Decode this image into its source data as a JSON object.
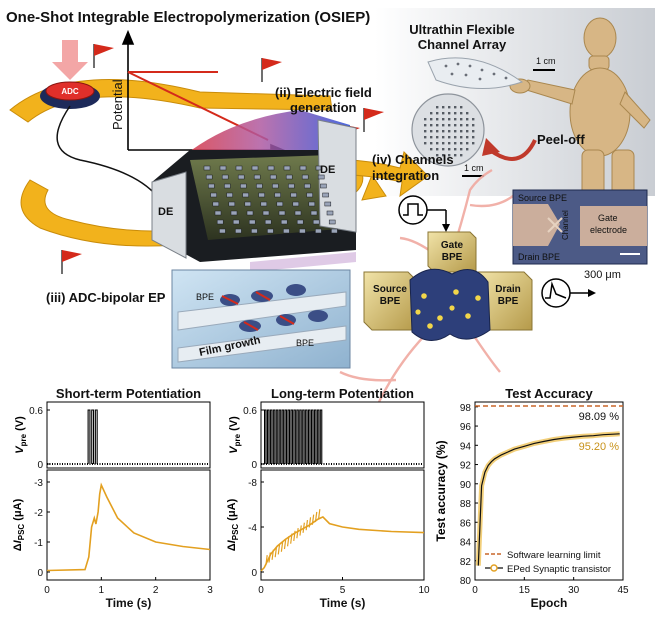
{
  "title": "One-Shot Integrable Electropolymerization (OSIEP)",
  "top_left": {
    "button": "ADC",
    "axis_label": "Potential",
    "step_ii": "(ii) Electric field",
    "step_ii_line2": "generation",
    "step_iii": "(iii) ADC-bipolar EP",
    "step_iv": "(iv) Channels",
    "step_iv_line2": "integration",
    "de_left": "DE",
    "de_right": "DE",
    "inset_bpe_1": "BPE",
    "inset_bpe_2": "BPE",
    "inset_film": "Film growth"
  },
  "top_right": {
    "title_line1": "Ultrathin Flexible",
    "title_line2": "Channel Array",
    "scale_1": "1 cm",
    "scale_2": "1 cm",
    "peel_off": "Peel-off"
  },
  "device": {
    "gate": "Gate",
    "gate_line2": "BPE",
    "source": "Source",
    "source_line2": "BPE",
    "drain": "Drain",
    "drain_line2": "BPE",
    "micro_source": "Source BPE",
    "micro_drain": "Drain BPE",
    "micro_channel": "Channel",
    "micro_gate": "Gate",
    "micro_gate_line2": "electrode",
    "micro_scale": "300 μm"
  },
  "colors": {
    "arrow_yellow": "#f2b21c",
    "flag_red": "#d42a1b",
    "trace_orange": "#e3a020",
    "limit_dashed": "#c8662a"
  },
  "chart_data": [
    {
      "type": "line",
      "title": "Short-term Potentiation",
      "xlabel": "Time (s)",
      "xlim": [
        0,
        3
      ],
      "xticks": [
        "0",
        "1",
        "2",
        "3"
      ],
      "top_panel": {
        "ylabel": "V_pre (V)",
        "yticks": [
          "0",
          "0.6"
        ],
        "ylim": [
          0,
          0.6
        ],
        "pulses": 3,
        "pulse_window": [
          0.75,
          0.95
        ]
      },
      "bottom_panel": {
        "ylabel": "ΔI_PSC (μA)",
        "yticks": [
          "0",
          "-1",
          "-2",
          "-3"
        ],
        "ylim": [
          0,
          -3
        ],
        "series": [
          {
            "x": [
              0,
              0.7,
              0.77,
              0.82,
              0.87,
              0.9,
              0.94,
              0.97,
              1.0,
              1.1,
              1.3,
              1.6,
              2.0,
              2.5,
              3.0
            ],
            "y": [
              -0.05,
              -0.08,
              -0.5,
              -1.5,
              -1.8,
              -1.6,
              -2.0,
              -2.6,
              -2.9,
              -2.5,
              -1.8,
              -1.3,
              -1.0,
              -0.85,
              -0.75
            ]
          }
        ]
      }
    },
    {
      "type": "line",
      "title": "Long-term  Potentiation",
      "xlabel": "Time (s)",
      "xlim": [
        0,
        10
      ],
      "xticks": [
        "0",
        "5",
        "10"
      ],
      "top_panel": {
        "ylabel": "V_pre (V)",
        "yticks": [
          "0",
          "0.6"
        ],
        "ylim": [
          0,
          0.6
        ],
        "pulses": 20,
        "pulse_window": [
          0.2,
          3.8
        ]
      },
      "bottom_panel": {
        "ylabel": "ΔI_PSC (μA)",
        "yticks": [
          "0",
          "-4",
          "-8"
        ],
        "ylim": [
          0,
          -8
        ],
        "series": [
          {
            "x": [
              0,
              0.2,
              0.6,
              1.0,
              1.5,
              2.0,
              2.5,
              3.0,
              3.5,
              3.8,
              4.2,
              5.0,
              6.0,
              8.0,
              10.0
            ],
            "y": [
              -0.1,
              -0.4,
              -1.6,
              -2.3,
              -2.9,
              -3.4,
              -3.8,
              -4.2,
              -4.7,
              -4.9,
              -4.3,
              -4.0,
              -3.8,
              -3.6,
              -3.5
            ]
          }
        ]
      }
    },
    {
      "type": "line",
      "title": "Test Accuracy",
      "xlabel": "Epoch",
      "ylabel": "Test accuracy (%)",
      "xlim": [
        0,
        45
      ],
      "ylim": [
        80,
        98.5
      ],
      "xticks": [
        "0",
        "15",
        "30",
        "45"
      ],
      "yticks": [
        "80",
        "82",
        "84",
        "86",
        "88",
        "90",
        "92",
        "94",
        "96",
        "98"
      ],
      "annotations": [
        "98.09 %",
        "95.20 %"
      ],
      "legend": [
        "Software learning limit",
        "EPed Synaptic transistor"
      ],
      "legend_position": "bottom-right",
      "series": [
        {
          "name": "Software learning limit",
          "x": [
            0,
            45
          ],
          "y": [
            98.09,
            98.09
          ]
        },
        {
          "name": "EPed Synaptic transistor",
          "x": [
            1,
            2,
            3,
            4,
            5,
            6,
            8,
            10,
            12,
            15,
            18,
            21,
            24,
            27,
            30,
            33,
            36,
            39,
            42,
            44
          ],
          "y": [
            81.5,
            89.8,
            91.2,
            91.9,
            92.3,
            92.6,
            93.0,
            93.3,
            93.6,
            93.9,
            94.2,
            94.4,
            94.6,
            94.75,
            94.85,
            94.95,
            95.0,
            95.1,
            95.15,
            95.2
          ]
        }
      ]
    }
  ]
}
